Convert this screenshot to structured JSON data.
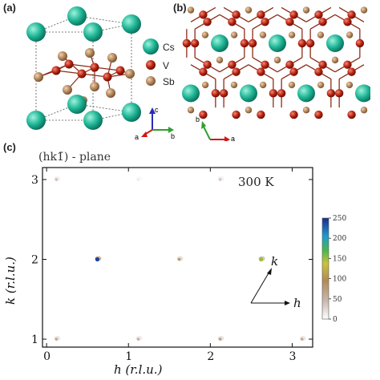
{
  "panels": {
    "a": "(a)",
    "b": "(b)",
    "c": "(c)"
  },
  "colors": {
    "cs": "#1fb596",
    "v": "#b8230f",
    "sb": "#b3865a",
    "bond": "#8b2a14",
    "axis_a": "#d11919",
    "axis_b": "#2ea02e",
    "axis_c": "#2a2ab6"
  },
  "legend": {
    "cs": "Cs",
    "v": "V",
    "sb": "Sb"
  },
  "axes_a": {
    "a": "a",
    "b": "b",
    "c": "c"
  },
  "axes_b": {
    "a": "a",
    "b": "b"
  },
  "chart_data": {
    "type": "heatmap",
    "title": "(hk1̄) - plane",
    "temperature": "300 K",
    "xlabel": "h (r.l.u.)",
    "ylabel": "k (r.l.u.)",
    "xlim": [
      -0.05,
      3.25
    ],
    "ylim": [
      0.9,
      3.15
    ],
    "xticks": [
      0,
      1,
      2,
      3
    ],
    "yticks": [
      1,
      2,
      3
    ],
    "colorbar": {
      "min": 0,
      "max": 250,
      "ticks": [
        0,
        50,
        100,
        150,
        200,
        250
      ]
    },
    "inset_vectors": {
      "h": "h",
      "k": "k"
    },
    "peaks": [
      {
        "h": 0.12,
        "k": 3.0,
        "intensity": 40
      },
      {
        "h": 1.12,
        "k": 3.0,
        "intensity": 12
      },
      {
        "h": 2.12,
        "k": 3.0,
        "intensity": 35
      },
      {
        "h": 0.62,
        "k": 2.0,
        "intensity": 240
      },
      {
        "h": 1.62,
        "k": 2.0,
        "intensity": 80
      },
      {
        "h": 2.62,
        "k": 2.0,
        "intensity": 150
      },
      {
        "h": 0.12,
        "k": 1.0,
        "intensity": 60
      },
      {
        "h": 1.12,
        "k": 1.0,
        "intensity": 50
      },
      {
        "h": 2.12,
        "k": 1.0,
        "intensity": 70
      },
      {
        "h": 3.12,
        "k": 1.0,
        "intensity": 60
      }
    ]
  }
}
